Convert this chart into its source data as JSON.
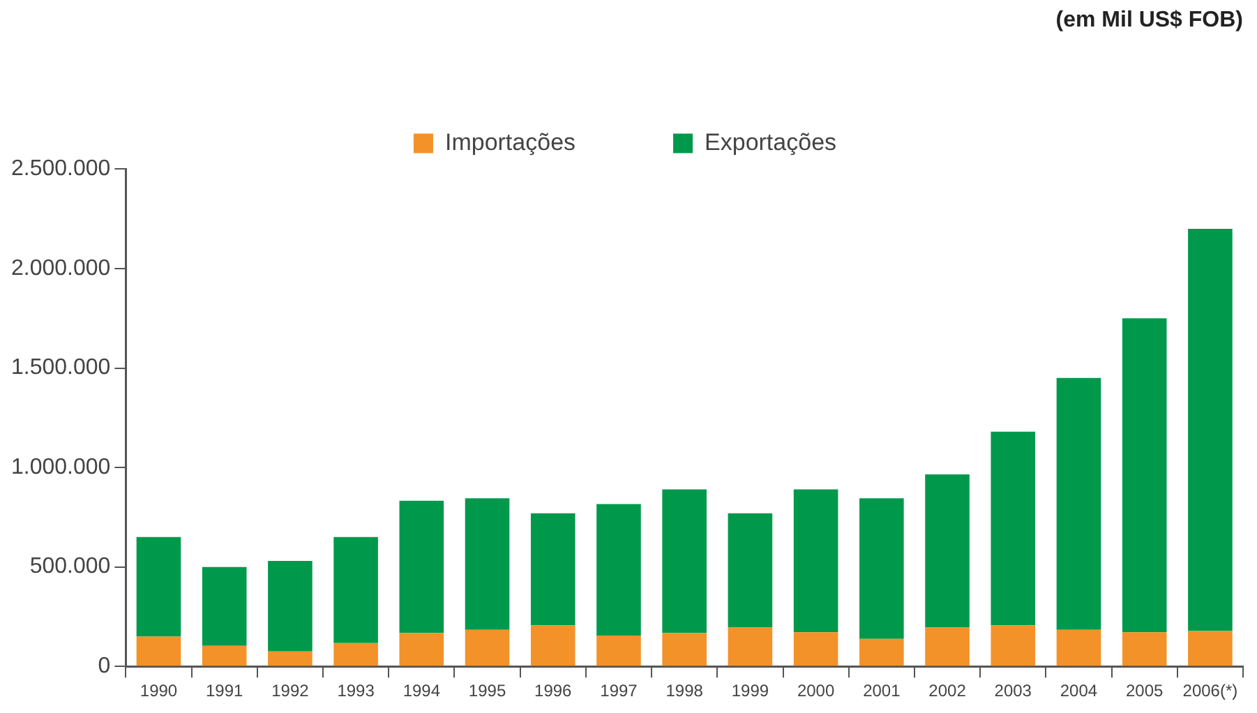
{
  "chart_data": {
    "type": "bar",
    "subtitle": "(em Mil US$ FOB)",
    "categories": [
      "1990",
      "1991",
      "1992",
      "1993",
      "1994",
      "1995",
      "1996",
      "1997",
      "1998",
      "1999",
      "2000",
      "2001",
      "2002",
      "2003",
      "2004",
      "2005",
      "2006(*)"
    ],
    "series": [
      {
        "name": "Importações",
        "color": "#f39229",
        "values": [
          150000,
          103000,
          75000,
          117000,
          168000,
          184000,
          207000,
          155000,
          168000,
          195000,
          172000,
          138000,
          195000,
          207000,
          184000,
          172000,
          178000
        ]
      },
      {
        "name": "Exportações",
        "color": "#00994c",
        "values": [
          500000,
          397000,
          455000,
          533000,
          665000,
          661000,
          563000,
          661000,
          722000,
          575000,
          718000,
          707000,
          770000,
          973000,
          1266000,
          1578000,
          2022000
        ]
      }
    ],
    "stacked": true,
    "ylim": [
      0,
      2500000
    ],
    "yticks": [
      {
        "value": 0,
        "label": "0"
      },
      {
        "value": 500000,
        "label": "500.000"
      },
      {
        "value": 1000000,
        "label": "1.000.000"
      },
      {
        "value": 1500000,
        "label": "1.500.000"
      },
      {
        "value": 2000000,
        "label": "2.000.000"
      },
      {
        "value": 2500000,
        "label": "2.500.000"
      }
    ],
    "grid": false,
    "legend": "top"
  }
}
